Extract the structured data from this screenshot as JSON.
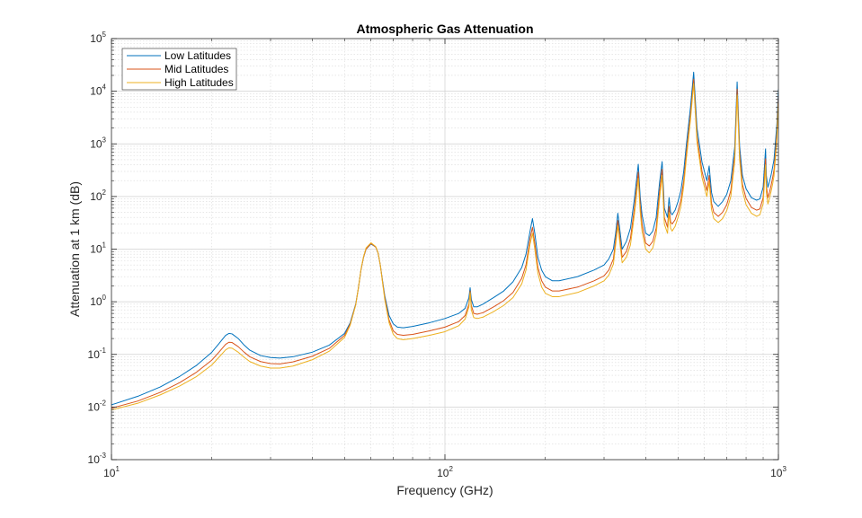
{
  "chart_data": {
    "type": "line",
    "title": "Atmospheric Gas Attenuation",
    "xlabel": "Frequency (GHz)",
    "ylabel": "Attenuation at 1 km (dB)",
    "xscale": "log",
    "yscale": "log",
    "xlim": [
      10,
      1000
    ],
    "ylim": [
      0.001,
      100000
    ],
    "grid": true,
    "minor_grid": true,
    "legend_position": "top-left",
    "x_ticks": [
      {
        "base": "10",
        "exp": "1"
      },
      {
        "base": "10",
        "exp": "2"
      },
      {
        "base": "10",
        "exp": "3"
      }
    ],
    "y_ticks": [
      {
        "base": "10",
        "exp": "-3"
      },
      {
        "base": "10",
        "exp": "-2"
      },
      {
        "base": "10",
        "exp": "-1"
      },
      {
        "base": "10",
        "exp": "0"
      },
      {
        "base": "10",
        "exp": "1"
      },
      {
        "base": "10",
        "exp": "2"
      },
      {
        "base": "10",
        "exp": "3"
      },
      {
        "base": "10",
        "exp": "4"
      },
      {
        "base": "10",
        "exp": "5"
      }
    ],
    "series": [
      {
        "name": "Low Latitudes",
        "color": "#0072BD",
        "x": [
          10,
          12,
          14,
          16,
          18,
          20,
          21,
          22,
          22.5,
          23,
          24,
          25,
          26,
          28,
          30,
          32,
          35,
          40,
          45,
          50,
          52,
          54,
          55,
          56,
          57,
          58,
          60,
          62,
          63,
          64,
          65,
          66,
          68,
          70,
          72,
          75,
          80,
          90,
          100,
          110,
          115,
          118,
          119,
          120,
          122,
          125,
          130,
          140,
          150,
          160,
          170,
          175,
          180,
          183,
          186,
          190,
          195,
          200,
          210,
          220,
          250,
          280,
          300,
          310,
          320,
          325,
          330,
          340,
          350,
          360,
          370,
          380,
          385,
          390,
          400,
          410,
          420,
          430,
          440,
          448,
          455,
          465,
          470,
          475,
          480,
          490,
          500,
          510,
          520,
          530,
          545,
          557,
          570,
          590,
          610,
          620,
          630,
          640,
          660,
          680,
          700,
          720,
          740,
          752,
          765,
          780,
          800,
          830,
          860,
          880,
          900,
          915,
          920,
          930,
          940,
          950,
          960,
          970,
          980,
          990,
          1000
        ],
        "y": [
          0.011,
          0.016,
          0.024,
          0.038,
          0.062,
          0.11,
          0.16,
          0.23,
          0.25,
          0.245,
          0.2,
          0.15,
          0.12,
          0.095,
          0.087,
          0.085,
          0.09,
          0.11,
          0.15,
          0.25,
          0.4,
          0.9,
          1.8,
          4,
          7,
          10,
          12.5,
          11,
          8.5,
          5,
          2.5,
          1.3,
          0.55,
          0.38,
          0.33,
          0.32,
          0.34,
          0.4,
          0.48,
          0.6,
          0.75,
          1.2,
          1.85,
          1.1,
          0.8,
          0.8,
          0.9,
          1.2,
          1.6,
          2.4,
          4.5,
          8,
          22,
          38,
          20,
          7,
          4,
          3,
          2.5,
          2.5,
          3,
          4,
          5,
          6.5,
          10,
          20,
          48,
          10,
          14,
          25,
          90,
          410,
          100,
          45,
          20,
          18,
          22,
          40,
          180,
          460,
          60,
          40,
          95,
          50,
          45,
          55,
          80,
          130,
          300,
          1000,
          5000,
          23000,
          2000,
          450,
          200,
          380,
          120,
          80,
          65,
          80,
          110,
          200,
          900,
          15000,
          900,
          250,
          140,
          95,
          85,
          90,
          150,
          800,
          250,
          150,
          190,
          250,
          350,
          500,
          1100,
          2500,
          11000
        ]
      },
      {
        "name": "Mid Latitudes",
        "color": "#D95319",
        "x": [
          10,
          12,
          14,
          16,
          18,
          20,
          21,
          22,
          22.5,
          23,
          24,
          25,
          26,
          28,
          30,
          32,
          35,
          40,
          45,
          50,
          52,
          54,
          55,
          56,
          57,
          58,
          60,
          62,
          63,
          64,
          65,
          66,
          68,
          70,
          72,
          75,
          80,
          90,
          100,
          110,
          115,
          118,
          119,
          120,
          122,
          125,
          130,
          140,
          150,
          160,
          170,
          175,
          180,
          183,
          186,
          190,
          195,
          200,
          210,
          220,
          250,
          280,
          300,
          310,
          320,
          325,
          330,
          340,
          350,
          360,
          370,
          380,
          385,
          390,
          400,
          410,
          420,
          430,
          440,
          448,
          455,
          465,
          470,
          475,
          480,
          490,
          500,
          510,
          520,
          530,
          545,
          557,
          570,
          590,
          610,
          620,
          630,
          640,
          660,
          680,
          700,
          720,
          740,
          752,
          765,
          780,
          800,
          830,
          860,
          880,
          900,
          915,
          920,
          930,
          940,
          950,
          960,
          970,
          980,
          990,
          1000
        ],
        "y": [
          0.0095,
          0.013,
          0.019,
          0.029,
          0.046,
          0.078,
          0.11,
          0.155,
          0.17,
          0.168,
          0.14,
          0.11,
          0.09,
          0.073,
          0.067,
          0.066,
          0.072,
          0.092,
          0.13,
          0.23,
          0.38,
          0.88,
          1.8,
          4,
          7,
          10,
          12.8,
          11,
          8.5,
          5,
          2.4,
          1.2,
          0.45,
          0.28,
          0.24,
          0.23,
          0.24,
          0.28,
          0.33,
          0.42,
          0.55,
          0.9,
          1.6,
          0.85,
          0.6,
          0.58,
          0.62,
          0.8,
          1.05,
          1.5,
          2.8,
          5,
          16,
          26,
          13,
          4.5,
          2.5,
          1.9,
          1.6,
          1.6,
          1.9,
          2.5,
          3.1,
          4,
          6.5,
          15,
          35,
          7,
          9,
          16,
          60,
          290,
          70,
          30,
          13,
          11.5,
          14,
          25,
          120,
          330,
          40,
          26,
          65,
          33,
          30,
          36,
          52,
          85,
          200,
          700,
          3600,
          17000,
          1400,
          300,
          130,
          250,
          75,
          50,
          42,
          50,
          70,
          130,
          620,
          11000,
          650,
          170,
          92,
          62,
          55,
          58,
          95,
          520,
          160,
          95,
          120,
          160,
          220,
          320,
          700,
          1700,
          8000
        ]
      },
      {
        "name": "High Latitudes",
        "color": "#EDB120",
        "x": [
          10,
          12,
          14,
          16,
          18,
          20,
          21,
          22,
          22.5,
          23,
          24,
          25,
          26,
          28,
          30,
          32,
          35,
          40,
          45,
          50,
          52,
          54,
          55,
          56,
          57,
          58,
          60,
          62,
          63,
          64,
          65,
          66,
          68,
          70,
          72,
          75,
          80,
          90,
          100,
          110,
          115,
          118,
          119,
          120,
          122,
          125,
          130,
          140,
          150,
          160,
          170,
          175,
          180,
          183,
          186,
          190,
          195,
          200,
          210,
          220,
          250,
          280,
          300,
          310,
          320,
          325,
          330,
          340,
          350,
          360,
          370,
          380,
          385,
          390,
          400,
          410,
          420,
          430,
          440,
          448,
          455,
          465,
          470,
          475,
          480,
          490,
          500,
          510,
          520,
          530,
          545,
          557,
          570,
          590,
          610,
          620,
          630,
          640,
          660,
          680,
          700,
          720,
          740,
          752,
          765,
          780,
          800,
          830,
          860,
          880,
          900,
          915,
          920,
          930,
          940,
          950,
          960,
          970,
          980,
          990,
          1000
        ],
        "y": [
          0.0088,
          0.0118,
          0.017,
          0.025,
          0.038,
          0.063,
          0.088,
          0.122,
          0.133,
          0.131,
          0.11,
          0.088,
          0.073,
          0.06,
          0.055,
          0.055,
          0.06,
          0.079,
          0.115,
          0.21,
          0.36,
          0.86,
          1.8,
          4.1,
          7.2,
          10.5,
          13.2,
          11.2,
          8.6,
          5,
          2.3,
          1.1,
          0.4,
          0.24,
          0.2,
          0.19,
          0.2,
          0.23,
          0.27,
          0.35,
          0.47,
          0.8,
          1.5,
          0.7,
          0.5,
          0.48,
          0.51,
          0.65,
          0.85,
          1.2,
          2.2,
          4,
          12.5,
          20,
          10,
          3.5,
          1.9,
          1.45,
          1.25,
          1.25,
          1.5,
          2,
          2.5,
          3.2,
          5.2,
          12,
          28,
          5.5,
          7,
          12,
          45,
          220,
          52,
          22,
          10,
          8.5,
          10.5,
          19,
          90,
          250,
          30,
          20,
          50,
          25,
          22,
          27,
          40,
          65,
          155,
          550,
          2900,
          14000,
          1100,
          230,
          100,
          190,
          57,
          38,
          32,
          38,
          54,
          100,
          480,
          8500,
          500,
          130,
          70,
          48,
          42,
          45,
          73,
          400,
          122,
          72,
          92,
          122,
          168,
          245,
          540,
          1300,
          6200
        ]
      }
    ]
  }
}
